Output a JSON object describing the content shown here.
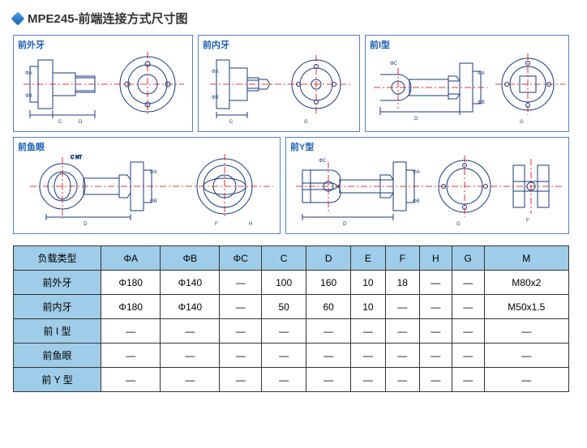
{
  "title": "MPE245-前端连接方式尺寸图",
  "panels": [
    {
      "key": "p1",
      "label": "前外牙"
    },
    {
      "key": "p2",
      "label": "前内牙"
    },
    {
      "key": "p3",
      "label": "前I型"
    },
    {
      "key": "p4",
      "label": "前鱼眼"
    },
    {
      "key": "p5",
      "label": "前Y型"
    }
  ],
  "table": {
    "headers": [
      "负载类型",
      "ΦA",
      "ΦB",
      "ΦC",
      "C",
      "D",
      "E",
      "F",
      "H",
      "G",
      "M"
    ],
    "rows": [
      [
        "前外牙",
        "Φ180",
        "Φ140",
        "—",
        "100",
        "160",
        "10",
        "18",
        "—",
        "—",
        "M80x2"
      ],
      [
        "前内牙",
        "Φ180",
        "Φ140",
        "—",
        "50",
        "60",
        "10",
        "—",
        "—",
        "—",
        "M50x1.5"
      ],
      [
        "前 I 型",
        "—",
        "—",
        "—",
        "—",
        "—",
        "—",
        "—",
        "—",
        "—",
        "—"
      ],
      [
        "前鱼眼",
        "—",
        "—",
        "—",
        "—",
        "—",
        "—",
        "—",
        "—",
        "—",
        "—"
      ],
      [
        "前 Y 型",
        "—",
        "—",
        "—",
        "—",
        "—",
        "—",
        "—",
        "—",
        "—",
        "—"
      ]
    ]
  },
  "colors": {
    "panel_border": "#5a7fbf",
    "label_color": "#1a5fb4",
    "drawing_stroke": "#1a3a7a",
    "centerline": "#cc0000",
    "table_header_bg": "#9fcce8",
    "table_border": "#333333"
  },
  "svg_style": {
    "stroke_width": 1,
    "centerline_dash": "8 3 2 3"
  }
}
